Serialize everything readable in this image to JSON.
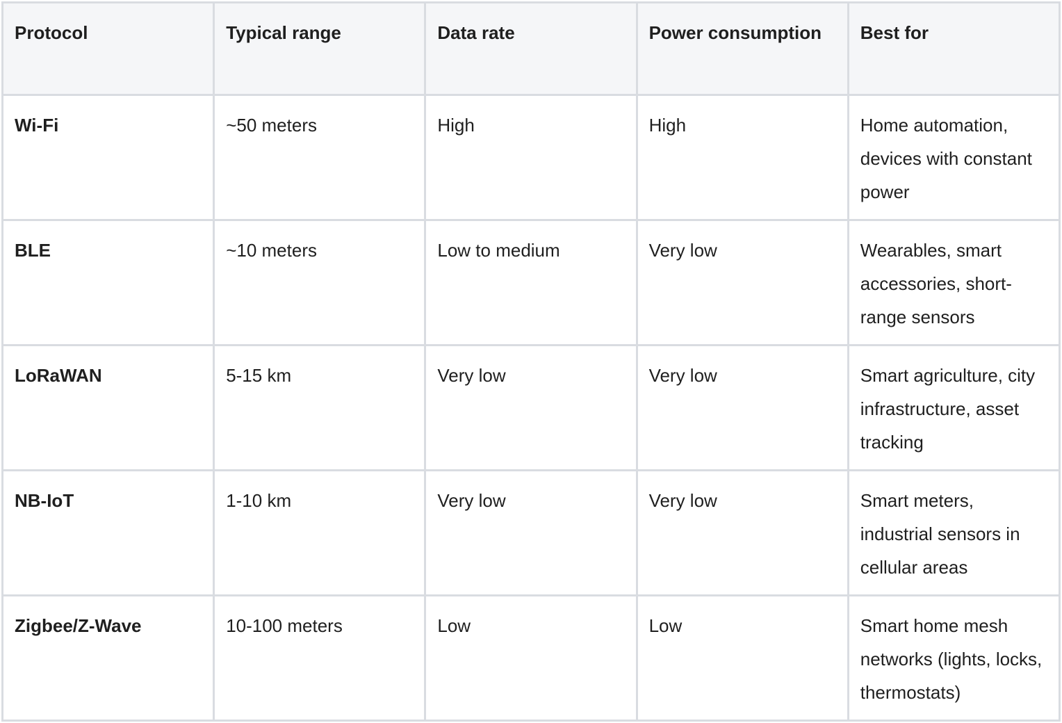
{
  "table": {
    "header": [
      "Protocol",
      "Typical range",
      "Data rate",
      "Power consumption",
      "Best for"
    ],
    "rows": [
      [
        "Wi-Fi",
        "~50 meters",
        "High",
        "High",
        "Home automation, devices with constant power"
      ],
      [
        "BLE",
        "~10 meters",
        "Low to medium",
        "Very low",
        "Wearables, smart accessories, short-range sensors"
      ],
      [
        "LoRaWAN",
        "5-15 km",
        "Very low",
        "Very low",
        "Smart agriculture, city infrastructure, asset tracking"
      ],
      [
        "NB-IoT",
        "1-10 km",
        "Very low",
        "Very low",
        "Smart meters, industrial sensors in cellular areas"
      ],
      [
        "Zigbee/Z-Wave",
        "10-100 meters",
        "Low",
        "Low",
        "Smart home mesh networks (lights, locks, thermostats)"
      ]
    ]
  }
}
